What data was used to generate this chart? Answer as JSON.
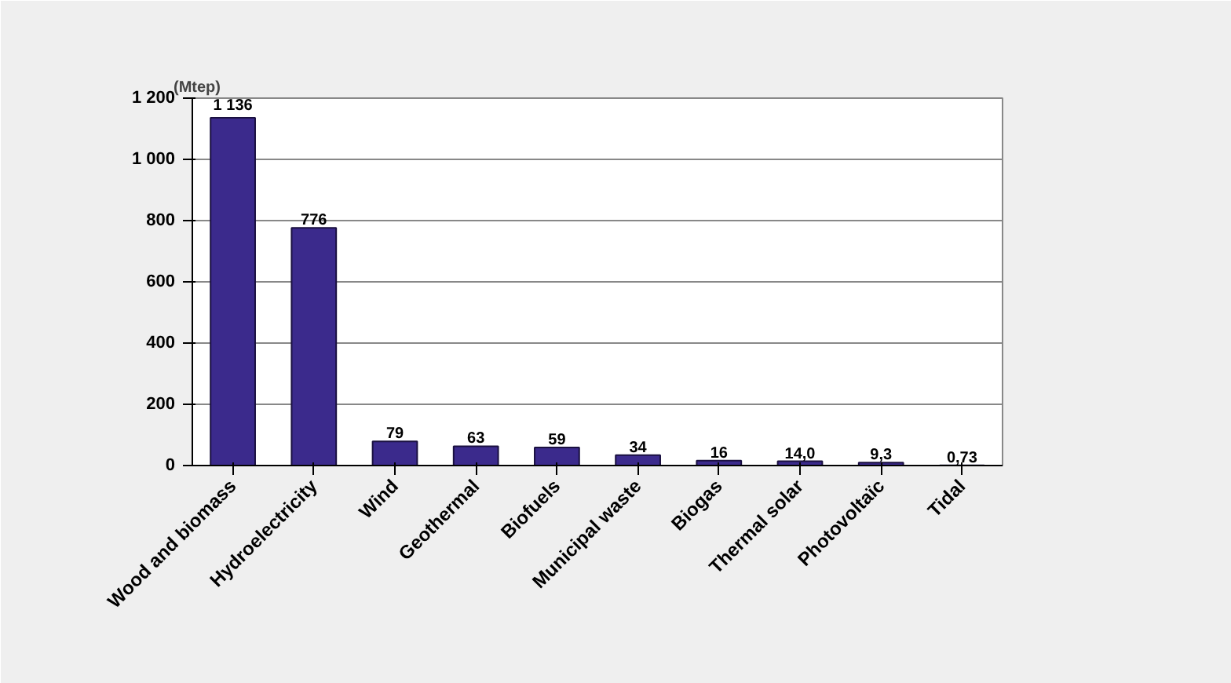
{
  "chart_data": {
    "type": "bar",
    "ylabel": "(Mtep)",
    "categories": [
      "Wood and biomass",
      "Hydroelectricity",
      "Wind",
      "Geothermal",
      "Biofuels",
      "Municipal waste",
      "Biogas",
      "Thermal solar",
      "Photovoltaïc",
      "Tidal"
    ],
    "values": [
      1136,
      776,
      79,
      63,
      59,
      34,
      16,
      14.0,
      9.3,
      0.73
    ],
    "value_labels": [
      "1 136",
      "776",
      "79",
      "63",
      "59",
      "34",
      "16",
      "14,0",
      "9,3",
      "0,73"
    ],
    "color": "#3b2a8c",
    "ylim": [
      0,
      1200
    ],
    "yticks": [
      0,
      200,
      400,
      600,
      800,
      {
        "value": 1000,
        "label": "1 000"
      },
      {
        "value": 1200,
        "label": "1 200"
      }
    ],
    "grid": "y"
  }
}
